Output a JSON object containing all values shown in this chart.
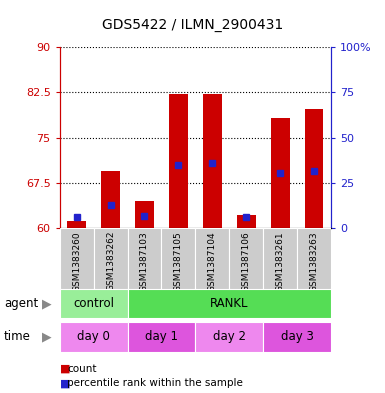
{
  "title": "GDS5422 / ILMN_2900431",
  "samples": [
    "GSM1383260",
    "GSM1383262",
    "GSM1387103",
    "GSM1387105",
    "GSM1387104",
    "GSM1387106",
    "GSM1383261",
    "GSM1383263"
  ],
  "counts": [
    61.2,
    69.5,
    64.5,
    82.2,
    82.2,
    62.2,
    78.2,
    79.8
  ],
  "percentile_values": [
    61.8,
    63.8,
    62.0,
    70.5,
    70.8,
    61.8,
    69.2,
    69.5
  ],
  "bar_bottom": 60.0,
  "ylim_left": [
    60,
    90
  ],
  "ylim_right": [
    0,
    100
  ],
  "yticks_left": [
    60,
    67.5,
    75,
    82.5,
    90
  ],
  "ytick_labels_left": [
    "60",
    "67.5",
    "75",
    "82.5",
    "90"
  ],
  "yticks_right": [
    0,
    25,
    50,
    75,
    100
  ],
  "ytick_labels_right": [
    "0",
    "25",
    "50",
    "75",
    "100%"
  ],
  "bar_color": "#cc0000",
  "percentile_color": "#2222cc",
  "agent_labels": [
    {
      "label": "control",
      "start": 0,
      "end": 2,
      "color": "#99ee99"
    },
    {
      "label": "RANKL",
      "start": 2,
      "end": 8,
      "color": "#55dd55"
    }
  ],
  "time_labels": [
    {
      "label": "day 0",
      "start": 0,
      "end": 2,
      "color": "#ee88ee"
    },
    {
      "label": "day 1",
      "start": 2,
      "end": 4,
      "color": "#dd55dd"
    },
    {
      "label": "day 2",
      "start": 4,
      "end": 6,
      "color": "#ee88ee"
    },
    {
      "label": "day 3",
      "start": 6,
      "end": 8,
      "color": "#dd55dd"
    }
  ],
  "background_color": "#ffffff",
  "plot_bg_color": "#ffffff",
  "grid_color": "#000000",
  "tick_color_left": "#cc0000",
  "tick_color_right": "#2222cc",
  "bar_width": 0.55,
  "legend_count_label": "count",
  "legend_percentile_label": "percentile rank within the sample",
  "agent_row_label": "agent",
  "time_row_label": "time",
  "xtick_bg_color": "#cccccc"
}
